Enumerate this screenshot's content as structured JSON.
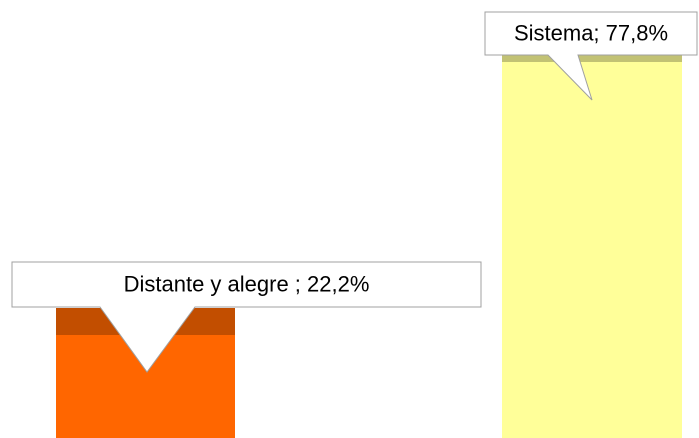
{
  "chart_data": {
    "type": "bar",
    "values": [
      22.2,
      77.8
    ],
    "value_labels": [
      "Distante y alegre ; 22,2%",
      "Sistema; 77,8%"
    ],
    "colors": [
      "#ff6600",
      "#ffff99"
    ],
    "ylim": [
      0,
      100
    ]
  }
}
